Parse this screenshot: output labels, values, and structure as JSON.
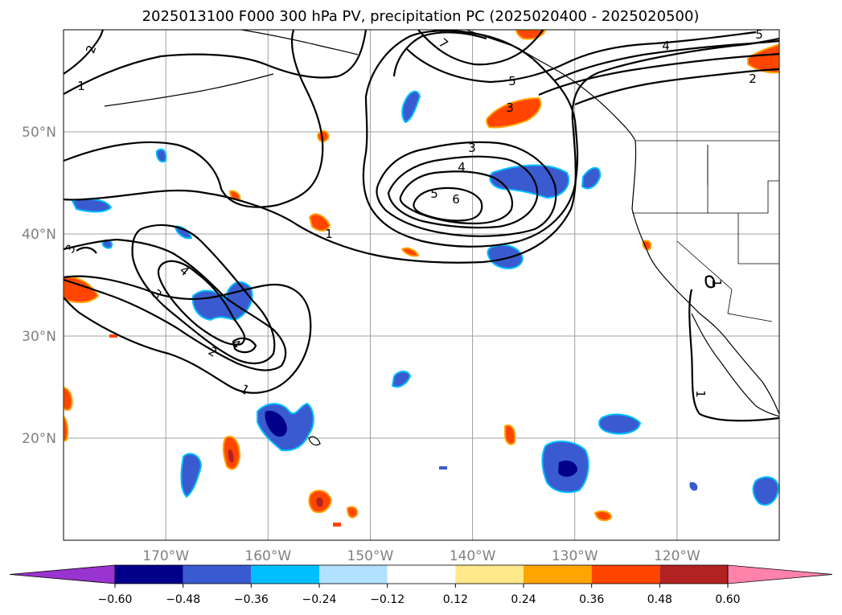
{
  "chart_data": {
    "type": "map",
    "title": "2025013100 F000 300 hPa PV, precipitation PC (2025020400 - 2025020500)",
    "extent": {
      "lon": [
        -180,
        -110
      ],
      "lat": [
        10,
        60
      ]
    },
    "grid": true,
    "lon_ticks": [
      "170°W",
      "160°W",
      "150°W",
      "140°W",
      "130°W",
      "120°W"
    ],
    "lat_ticks": [
      "50°N",
      "40°N",
      "30°N",
      "20°N"
    ],
    "colorbar": {
      "orientation": "horizontal",
      "extend": "both",
      "tick_labels": [
        "−0.60",
        "−0.48",
        "−0.36",
        "−0.24",
        "−0.12",
        "0.12",
        "0.24",
        "0.36",
        "0.48",
        "0.60"
      ],
      "colors": [
        "#9a34d0",
        "#00008b",
        "#3a5bd0",
        "#00bfff",
        "#b0e2ff",
        "#ffffff",
        "#ffe88a",
        "#ffa500",
        "#ff4500",
        "#b22222",
        "#ff82ab"
      ]
    },
    "pv_contour_labels": [
      "1",
      "2",
      "3",
      "4",
      "5",
      "6",
      "7"
    ],
    "pv_troughs": [
      {
        "max_label": "6",
        "labels": [
          "1",
          "3",
          "4",
          "5",
          "6"
        ]
      },
      {
        "max_label": "4",
        "labels": [
          "1",
          "2",
          "3",
          "4"
        ]
      },
      {
        "max_label": "7",
        "labels": [
          "5",
          "7"
        ]
      }
    ]
  }
}
